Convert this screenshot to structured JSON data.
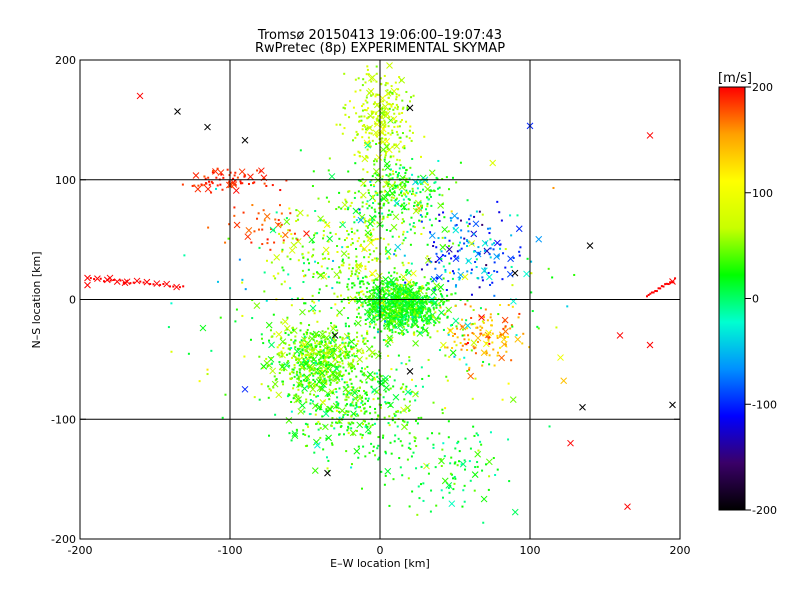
{
  "chart_data": {
    "type": "scatter",
    "title": "Tromsø 20150413 19:06:00–19:07:43",
    "subtitle": "RwPretec (8p) EXPERIMENTAL SKYMAP",
    "xlabel": "E–W location [km]",
    "ylabel": "N–S location [km]",
    "xlim": [
      -200,
      200
    ],
    "ylim": [
      -200,
      200
    ],
    "xticks": [
      -200,
      -100,
      0,
      100,
      200
    ],
    "yticks": [
      -200,
      -100,
      0,
      100,
      200
    ],
    "grid_lines_x": [
      -100,
      0,
      100
    ],
    "grid_lines_y": [
      -100,
      0,
      100
    ],
    "grid": true,
    "colorbar": {
      "unit": "[m/s]",
      "range": [
        -200,
        200
      ],
      "ticks": [
        -200,
        -100,
        0,
        100,
        200
      ],
      "palette": [
        "#000000",
        "#3a0068",
        "#0000ff",
        "#0090ff",
        "#00ffd0",
        "#00ff00",
        "#c8ff00",
        "#ffff00",
        "#ffa000",
        "#ff0000"
      ]
    },
    "markers": {
      "cross": "larger detections",
      "dot": "small detections"
    },
    "sample_points": [
      {
        "x": -160,
        "y": 170,
        "v": 200,
        "m": "cross"
      },
      {
        "x": -135,
        "y": 157,
        "v": -200,
        "m": "cross"
      },
      {
        "x": -115,
        "y": 144,
        "v": -200,
        "m": "cross"
      },
      {
        "x": -90,
        "y": 133,
        "v": -200,
        "m": "cross"
      },
      {
        "x": 20,
        "y": 160,
        "v": -200,
        "m": "cross"
      },
      {
        "x": 100,
        "y": 145,
        "v": -100,
        "m": "cross"
      },
      {
        "x": 180,
        "y": 137,
        "v": 200,
        "m": "cross"
      },
      {
        "x": 30,
        "y": 100,
        "v": -40,
        "m": "cross"
      },
      {
        "x": -195,
        "y": 12,
        "v": 200,
        "m": "cross"
      },
      {
        "x": -180,
        "y": 18,
        "v": 200,
        "m": "cross"
      },
      {
        "x": -170,
        "y": 14,
        "v": 200,
        "m": "cross"
      },
      {
        "x": 195,
        "y": 15,
        "v": 200,
        "m": "cross"
      },
      {
        "x": 180,
        "y": -38,
        "v": 200,
        "m": "cross"
      },
      {
        "x": 160,
        "y": -30,
        "v": 200,
        "m": "cross"
      },
      {
        "x": 20,
        "y": -60,
        "v": -200,
        "m": "cross"
      },
      {
        "x": -30,
        "y": -30,
        "v": -200,
        "m": "cross"
      },
      {
        "x": -35,
        "y": -145,
        "v": -200,
        "m": "cross"
      },
      {
        "x": 195,
        "y": -88,
        "v": -200,
        "m": "cross"
      },
      {
        "x": 135,
        "y": -90,
        "v": -200,
        "m": "cross"
      },
      {
        "x": 127,
        "y": -120,
        "v": 200,
        "m": "cross"
      },
      {
        "x": 165,
        "y": -173,
        "v": 200,
        "m": "cross"
      },
      {
        "x": -90,
        "y": -75,
        "v": -100,
        "m": "cross"
      },
      {
        "x": 140,
        "y": 45,
        "v": -200,
        "m": "cross"
      },
      {
        "x": 90,
        "y": 22,
        "v": -200,
        "m": "cross"
      }
    ]
  }
}
